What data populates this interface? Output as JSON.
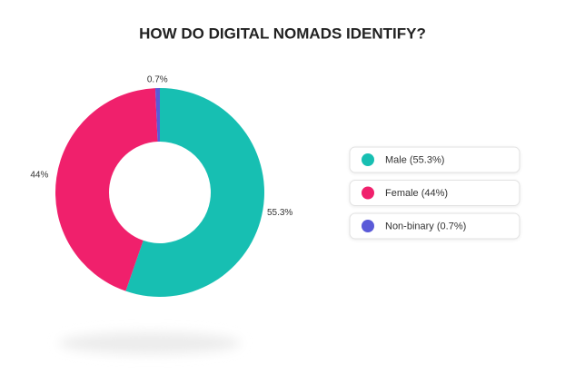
{
  "chart_data": {
    "type": "donut",
    "title": "HOW DO DIGITAL NOMADS IDENTIFY?",
    "categories": [
      "Male (55.3%)",
      "Female (44%)",
      "Non-binary (0.7%)"
    ],
    "values": [
      55.3,
      44,
      0.7
    ],
    "value_labels": [
      "55.3%",
      "44%",
      "0.7%"
    ],
    "colors": [
      "#17bfb2",
      "#f0206c",
      "#5a5ad8"
    ],
    "legend": "right"
  }
}
